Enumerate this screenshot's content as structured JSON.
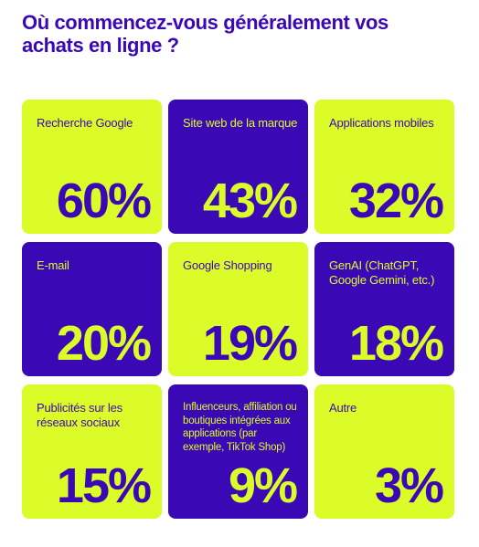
{
  "colors": {
    "lime": "#dcfc2a",
    "indigo": "#3a08b5",
    "title": "#3a08b5"
  },
  "title": "Où commencez-vous généralement vos achats en ligne ?",
  "chart_data": {
    "type": "table",
    "title": "Où commencez-vous généralement vos achats en ligne ?",
    "unit": "%",
    "categories": [
      "Recherche Google",
      "Site web de la marque",
      "Applications mobiles",
      "E-mail",
      "Google Shopping",
      "GenAI (ChatGPT, Google Gemini, etc.)",
      "Publicités sur les réseaux sociaux",
      "Influenceurs, affiliation ou boutiques intégrées aux applications (par exemple, TikTok Shop)",
      "Autre"
    ],
    "values": [
      60,
      43,
      32,
      20,
      19,
      18,
      15,
      9,
      3
    ],
    "tiles": [
      {
        "label": "Recherche Google",
        "value": "60%",
        "style": "lime"
      },
      {
        "label": "Site web de la marque",
        "value": "43%",
        "style": "indigo"
      },
      {
        "label": "Applications mobiles",
        "value": "32%",
        "style": "lime"
      },
      {
        "label": "E-mail",
        "value": "20%",
        "style": "indigo"
      },
      {
        "label": "Google Shopping",
        "value": "19%",
        "style": "lime"
      },
      {
        "label": "GenAI (ChatGPT, Google Gemini, etc.)",
        "value": "18%",
        "style": "indigo"
      },
      {
        "label": "Publicités sur les réseaux sociaux",
        "value": "15%",
        "style": "lime"
      },
      {
        "label": "Influenceurs, affiliation ou boutiques intégrées aux applications (par exemple, TikTok Shop)",
        "value": "9%",
        "style": "indigo"
      },
      {
        "label": "Autre",
        "value": "3%",
        "style": "lime"
      }
    ]
  }
}
